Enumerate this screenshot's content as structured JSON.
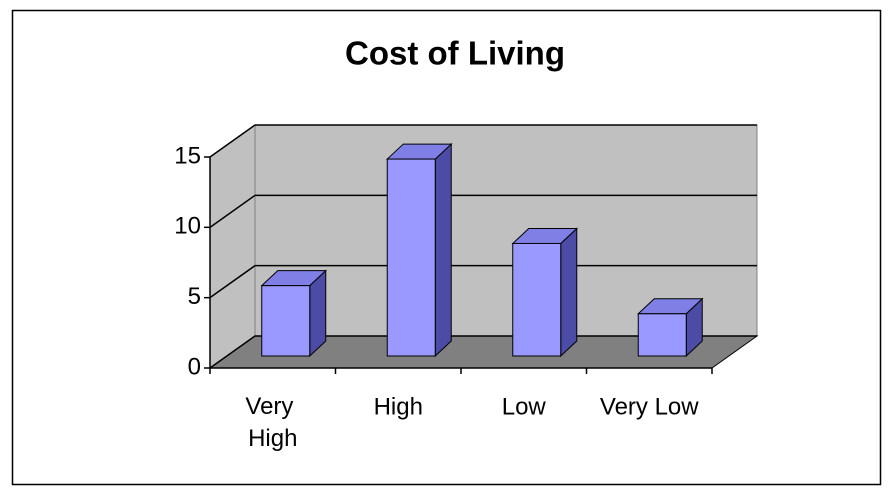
{
  "chart_data": {
    "type": "bar",
    "title": "Cost of Living",
    "categories": [
      "Very High",
      "High",
      "Low",
      "Very Low"
    ],
    "values": [
      5,
      14,
      8,
      3
    ],
    "color": "#9999ff",
    "ylim": [
      0,
      15
    ],
    "yticks": [
      0,
      5,
      10,
      15
    ],
    "grid": true
  }
}
